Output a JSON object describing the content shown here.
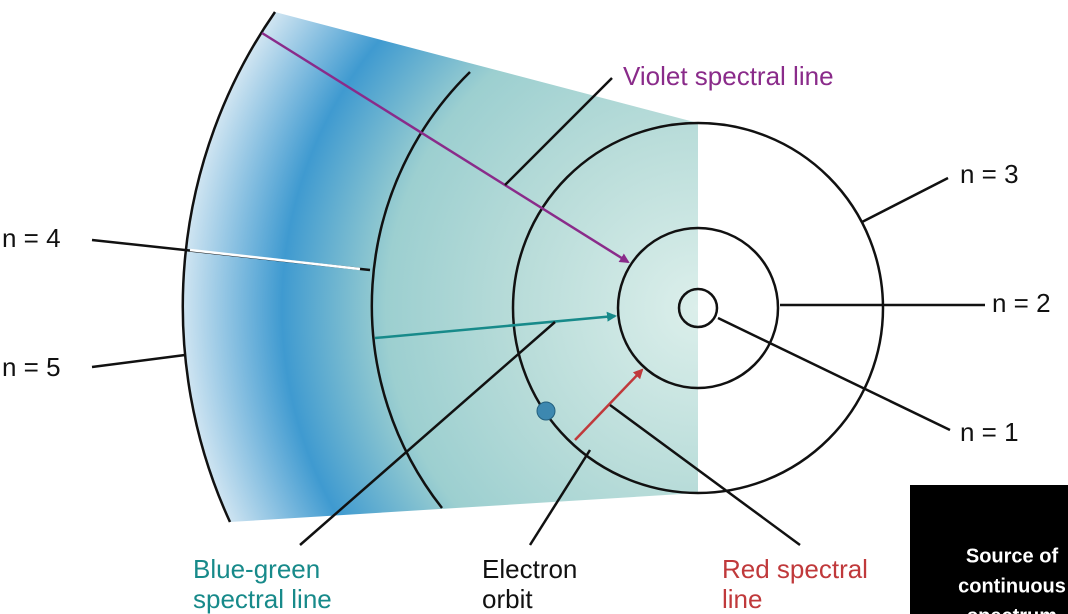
{
  "labels": {
    "violet": "Violet spectral line",
    "n3": "n = 3",
    "n2": "n = 2",
    "n1": "n = 1",
    "n4": "n = 4",
    "n5": "n = 5",
    "blue_green": [
      "Blue-green",
      "spectral line"
    ],
    "electron_orbit": [
      "Electron",
      "orbit"
    ],
    "red": [
      "Red spectral",
      "line"
    ],
    "source": [
      "Source of",
      "continuous",
      "spectrum"
    ]
  }
}
